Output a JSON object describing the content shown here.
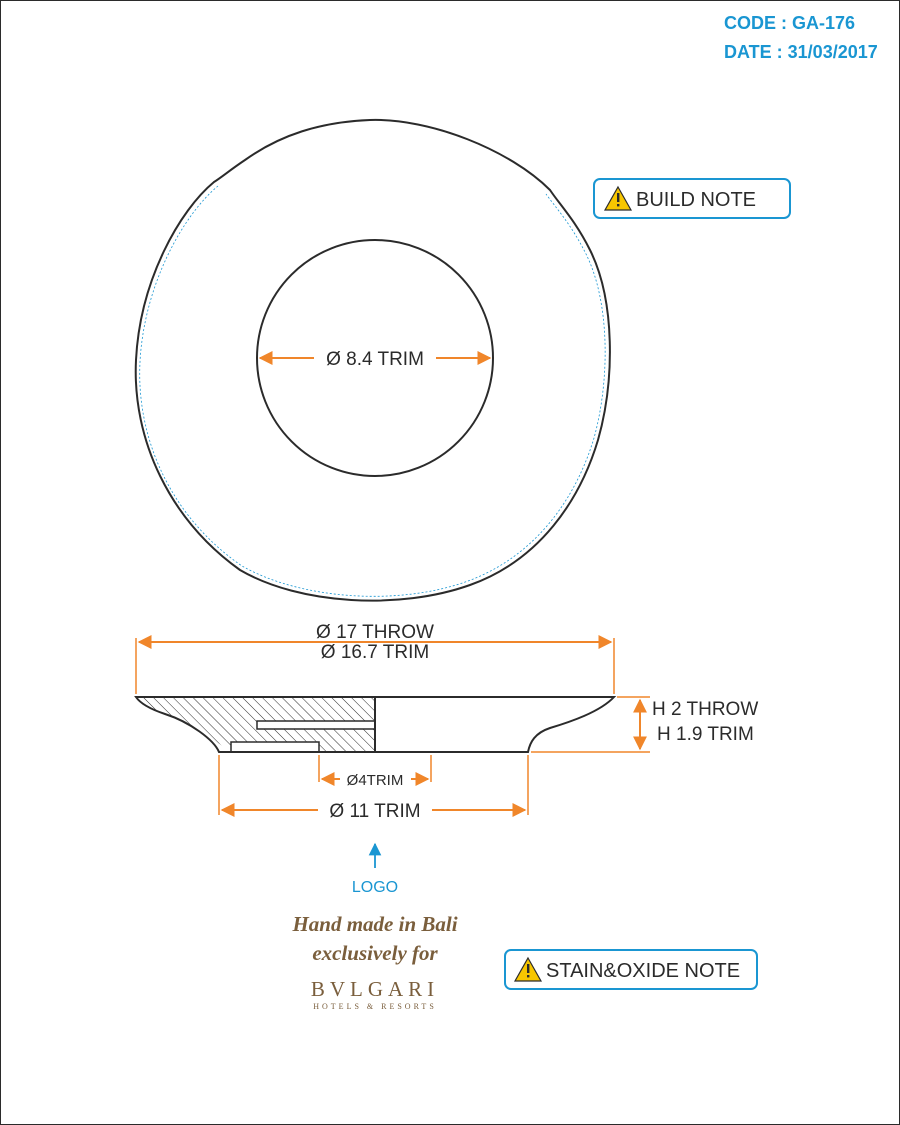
{
  "header": {
    "code": "CODE : GA-176",
    "date": "DATE : 31/03/2017"
  },
  "notes": {
    "build": "BUILD NOTE",
    "stain": "STAIN&OXIDE NOTE",
    "icon": "warning-triangle-icon"
  },
  "dimensions": {
    "inner_trim": "Ø 8.4 TRIM",
    "outer_throw": "Ø 17 THROW",
    "outer_trim": "Ø 16.7 TRIM",
    "height_throw": "H 2 THROW",
    "height_trim": "H 1.9 TRIM",
    "foot_inner": "Ø4TRIM",
    "foot_trim": "Ø 11 TRIM"
  },
  "logo_label": "LOGO",
  "branding": {
    "line1": "Hand made in Bali",
    "line2": "exclusively for",
    "brand": "BVLGARI",
    "sub": "HOTELS & RESORTS"
  },
  "colors": {
    "accent_blue": "#1a96d2",
    "dimension_orange": "#f0862a",
    "outline": "#2b2b2b",
    "brand_brown": "#7a5e3c"
  }
}
